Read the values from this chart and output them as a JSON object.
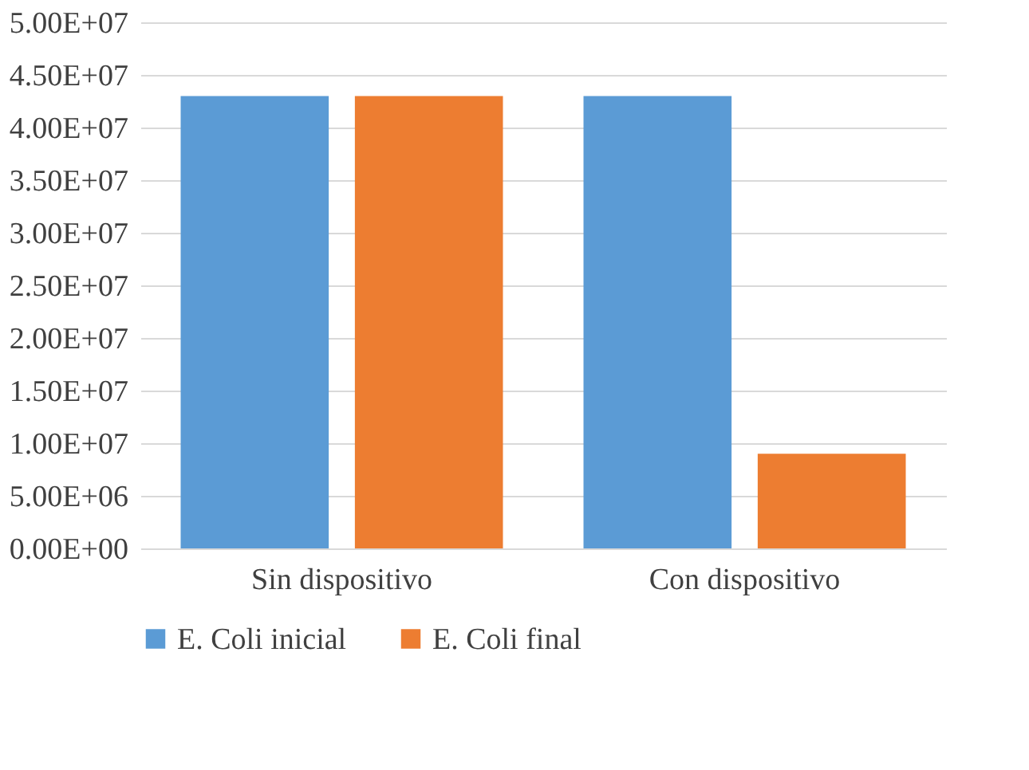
{
  "chart_data": {
    "type": "bar",
    "categories": [
      "Sin dispositivo",
      "Con dispositivo"
    ],
    "series": [
      {
        "name": "E. Coli inicial",
        "color": "#5b9bd5",
        "values": [
          43000000,
          43000000
        ]
      },
      {
        "name": "E. Coli final",
        "color": "#ed7d31",
        "values": [
          43000000,
          9000000
        ]
      }
    ],
    "ylim": [
      0,
      50000000
    ],
    "yticks": [
      {
        "value": 0,
        "label": "0.00E+00"
      },
      {
        "value": 5000000,
        "label": "5.00E+06"
      },
      {
        "value": 10000000,
        "label": "1.00E+07"
      },
      {
        "value": 15000000,
        "label": "1.50E+07"
      },
      {
        "value": 20000000,
        "label": "2.00E+07"
      },
      {
        "value": 25000000,
        "label": "2.50E+07"
      },
      {
        "value": 30000000,
        "label": "3.00E+07"
      },
      {
        "value": 35000000,
        "label": "3.50E+07"
      },
      {
        "value": 40000000,
        "label": "4.00E+07"
      },
      {
        "value": 45000000,
        "label": "4.50E+07"
      },
      {
        "value": 50000000,
        "label": "5.00E+07"
      }
    ],
    "grid": "y",
    "legend": "bottom"
  }
}
